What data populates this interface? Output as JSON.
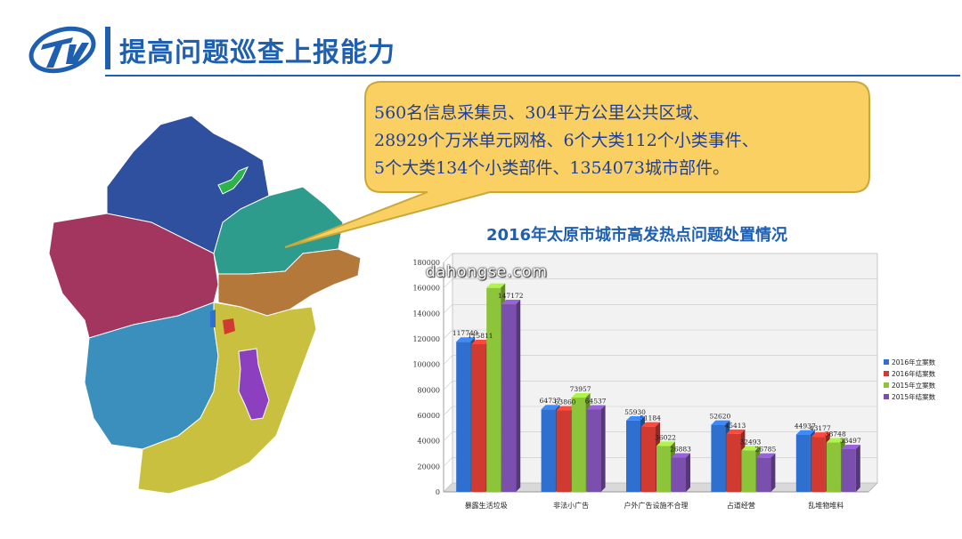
{
  "header": {
    "title": "提高问题巡查上报能力"
  },
  "callout": {
    "lines": [
      "560名信息采集员、304平方公里公共区域、",
      "28929个万米单元网格、6个大类112个小类事件、",
      "5个大类134个小类部件、1354073城市部件。"
    ]
  },
  "watermark": "dahongse.com",
  "colors": {
    "title": "#1f5fb0",
    "callout_fill": "#fbd063",
    "callout_border": "#c9a83a",
    "callout_text": "#1f3f9a",
    "map_regions": [
      "#2f4f9f",
      "#a3365f",
      "#2e9c8c",
      "#b4783a",
      "#3a8fbd",
      "#c9c040",
      "#8c3fbf",
      "#2db34a"
    ]
  },
  "chart_data": {
    "type": "bar",
    "title": "2016年太原市城市高发热点问题处置情况",
    "categories": [
      "暴露生活垃圾",
      "非法小广告",
      "户外广告设施不合理",
      "占道经营",
      "乱堆物堆料"
    ],
    "series": [
      {
        "name": "2016年立案数",
        "color": "#2f6fd0",
        "values": [
          117749,
          64737,
          55930,
          52620,
          44937
        ]
      },
      {
        "name": "2016年结案数",
        "color": "#d03a30",
        "values": [
          115811,
          63860,
          51184,
          45413,
          43177
        ]
      },
      {
        "name": "2015年立案数",
        "color": "#8cc43a",
        "values": [
          160000,
          73957,
          36022,
          32493,
          38748
        ]
      },
      {
        "name": "2015年结案数",
        "color": "#7a4fae",
        "values": [
          147172,
          64537,
          26883,
          26785,
          33497
        ]
      }
    ],
    "data_labels": [
      [
        "117749",
        "115811",
        "",
        "147172"
      ],
      [
        "64737",
        "63860",
        "73957",
        "64537"
      ],
      [
        "55930",
        "51184",
        "36022",
        "26883"
      ],
      [
        "52620",
        "45413",
        "32493",
        "26785"
      ],
      [
        "44937",
        "43177",
        "38748",
        "33497"
      ]
    ],
    "yticks": [
      "0",
      "20000",
      "40000",
      "60000",
      "80000",
      "100000",
      "120000",
      "140000",
      "160000",
      "180000"
    ],
    "ylim": [
      0,
      180000
    ],
    "xlabel": "",
    "ylabel": "",
    "legend_position": "right",
    "grid": true
  }
}
